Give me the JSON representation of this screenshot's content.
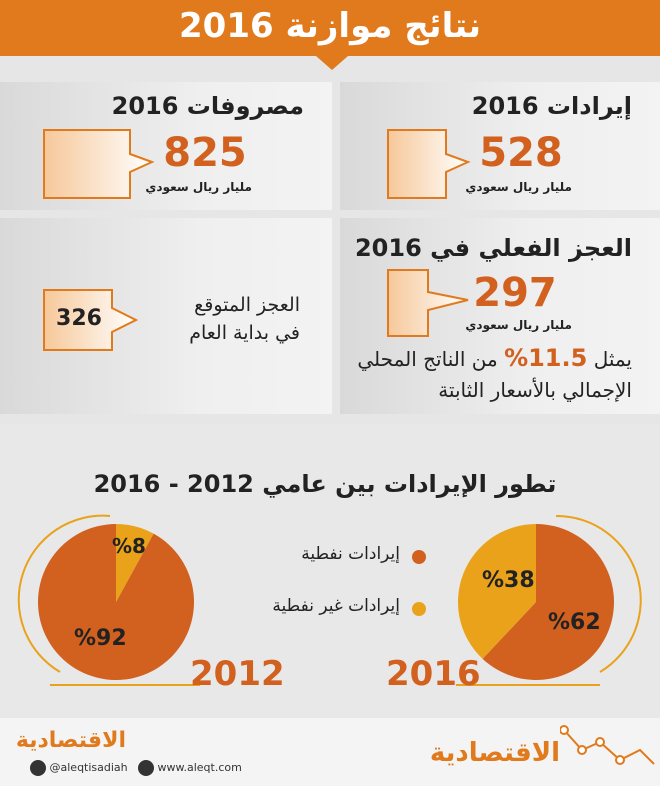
{
  "header": {
    "title": "نتائج موازنة 2016"
  },
  "revenues": {
    "title": "إيرادات 2016",
    "value": "528",
    "unit": "مليار ريال سعودي"
  },
  "expenses": {
    "title": "مصروفات 2016",
    "value": "825",
    "unit": "مليار ريال سعودي"
  },
  "deficit_actual": {
    "title": "العجز الفعلي في 2016",
    "value": "297",
    "unit": "مليار ريال سعودي",
    "note_prefix": "يمثل",
    "note_pct": "11.5%",
    "note_rest": "من الناتج المحلي",
    "note_line2": "الإجمالي بالأسعار الثابتة"
  },
  "deficit_expected": {
    "label_line1": "العجز المتوقع",
    "label_line2": "في بداية العام",
    "value": "326"
  },
  "revenue_section": {
    "title": "تطور الإيرادات بين عامي 2012 - 2016"
  },
  "legend": [
    {
      "label": "إيرادات نفطية",
      "color": "#d2601f"
    },
    {
      "label": "إيرادات غير نفطية",
      "color": "#e9a21a"
    }
  ],
  "chart_data": [
    {
      "type": "pie",
      "year": "2016",
      "values": [
        62,
        38
      ],
      "labels": [
        "%62",
        "%38"
      ],
      "colors": [
        "#d2601f",
        "#e9a21a"
      ]
    },
    {
      "type": "pie",
      "year": "2012",
      "values": [
        92,
        8
      ],
      "labels": [
        "%92",
        "%8"
      ],
      "colors": [
        "#d2601f",
        "#e9a21a"
      ]
    }
  ],
  "footer": {
    "twitter": "@aleqtisadiah",
    "website": "www.aleqt.com",
    "logo_text": "الاقتصادية"
  }
}
